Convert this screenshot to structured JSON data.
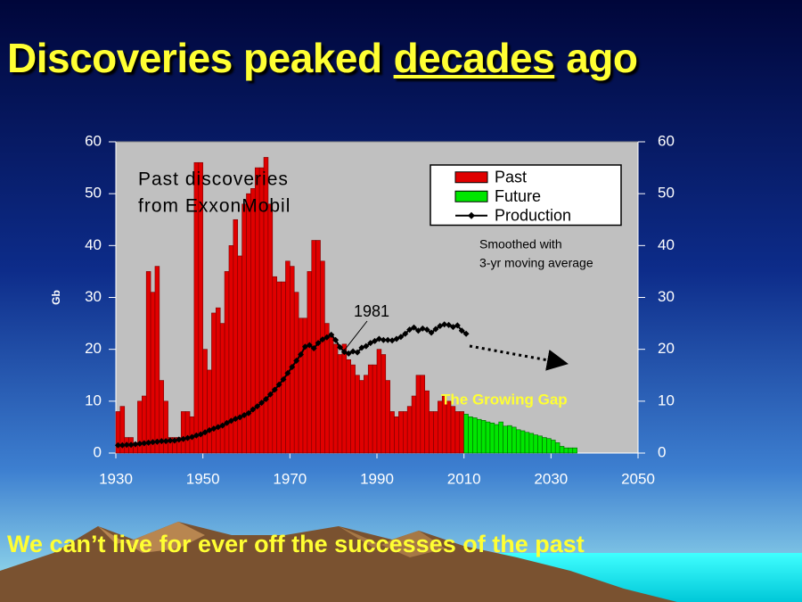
{
  "slide": {
    "title_parts": [
      "Discoveries peaked",
      "decades",
      "ago"
    ],
    "footer": "We can’t live for ever off the successes of the past"
  },
  "chart_data": {
    "type": "bar",
    "ylabel": "Gb",
    "annotations": {
      "source": [
        "Past discoveries",
        "from ExxonMobil"
      ],
      "smoothing": [
        "Smoothed with",
        "3-yr moving average"
      ],
      "peak_year": "1981",
      "gap": "The Growing Gap"
    },
    "x": [
      1930,
      1931,
      1932,
      1933,
      1934,
      1935,
      1936,
      1937,
      1938,
      1939,
      1940,
      1941,
      1942,
      1943,
      1944,
      1945,
      1946,
      1947,
      1948,
      1949,
      1950,
      1951,
      1952,
      1953,
      1954,
      1955,
      1956,
      1957,
      1958,
      1959,
      1960,
      1961,
      1962,
      1963,
      1964,
      1965,
      1966,
      1967,
      1968,
      1969,
      1970,
      1971,
      1972,
      1973,
      1974,
      1975,
      1976,
      1977,
      1978,
      1979,
      1980,
      1981,
      1982,
      1983,
      1984,
      1985,
      1986,
      1987,
      1988,
      1989,
      1990,
      1991,
      1992,
      1993,
      1994,
      1995,
      1996,
      1997,
      1998,
      1999,
      2000,
      2001,
      2002,
      2003,
      2004,
      2005,
      2006,
      2007,
      2008,
      2009,
      2010,
      2011,
      2012,
      2013,
      2014,
      2015,
      2016,
      2017,
      2018,
      2019,
      2020,
      2021,
      2022,
      2023,
      2024,
      2025,
      2026,
      2027,
      2028,
      2029,
      2030,
      2031,
      2032,
      2033,
      2034,
      2035
    ],
    "series": [
      {
        "name": "Past",
        "type": "bar",
        "color": "#e00000",
        "values": [
          8,
          9,
          3,
          3,
          2,
          10,
          11,
          35,
          31,
          36,
          14,
          10,
          3,
          3,
          3,
          8,
          8,
          7,
          56,
          56,
          20,
          16,
          27,
          28,
          25,
          35,
          40,
          45,
          38,
          48,
          50,
          51,
          55,
          55,
          57,
          48,
          34,
          33,
          33,
          37,
          36,
          31,
          26,
          26,
          35,
          41,
          41,
          37,
          25,
          23,
          21,
          19,
          21,
          18,
          17,
          15,
          14,
          15,
          17,
          17,
          20,
          19,
          14,
          8,
          7,
          8,
          8,
          9,
          11,
          15,
          15,
          12,
          8,
          8,
          10,
          11,
          10,
          9,
          8,
          8,
          null,
          null,
          null,
          null,
          null,
          null,
          null,
          null,
          null,
          null,
          null,
          null,
          null,
          null,
          null,
          null,
          null,
          null,
          null,
          null,
          null,
          null,
          null,
          null,
          null,
          null
        ]
      },
      {
        "name": "Future",
        "type": "bar",
        "color": "#00e600",
        "values": [
          null,
          null,
          null,
          null,
          null,
          null,
          null,
          null,
          null,
          null,
          null,
          null,
          null,
          null,
          null,
          null,
          null,
          null,
          null,
          null,
          null,
          null,
          null,
          null,
          null,
          null,
          null,
          null,
          null,
          null,
          null,
          null,
          null,
          null,
          null,
          null,
          null,
          null,
          null,
          null,
          null,
          null,
          null,
          null,
          null,
          null,
          null,
          null,
          null,
          null,
          null,
          null,
          null,
          null,
          null,
          null,
          null,
          null,
          null,
          null,
          null,
          null,
          null,
          null,
          null,
          null,
          null,
          null,
          null,
          null,
          null,
          null,
          null,
          null,
          null,
          null,
          null,
          null,
          null,
          null,
          7.5,
          7,
          6.8,
          6.5,
          6.3,
          6,
          5.8,
          5.5,
          6,
          5.2,
          5.3,
          5,
          4.5,
          4.3,
          4,
          3.8,
          3.5,
          3.3,
          3,
          2.8,
          2.5,
          2,
          1.3,
          1,
          1,
          1
        ]
      },
      {
        "name": "Production",
        "type": "line",
        "color": "#000000",
        "values": [
          1.5,
          1.5,
          1.6,
          1.6,
          1.7,
          1.8,
          1.9,
          2.0,
          2.1,
          2.2,
          2.3,
          2.3,
          2.4,
          2.4,
          2.6,
          2.7,
          2.9,
          3.1,
          3.4,
          3.6,
          4.0,
          4.4,
          4.7,
          5.0,
          5.3,
          5.8,
          6.2,
          6.6,
          6.9,
          7.3,
          7.7,
          8.4,
          9.0,
          9.7,
          10.4,
          11.3,
          12.2,
          13.2,
          14.2,
          15.4,
          16.6,
          17.8,
          19.0,
          20.5,
          20.8,
          20.2,
          21.2,
          21.9,
          22.3,
          22.8,
          21.8,
          20.4,
          19.5,
          19.2,
          19.6,
          19.4,
          20.3,
          20.6,
          21.2,
          21.6,
          22.0,
          21.8,
          21.8,
          21.7,
          22.0,
          22.4,
          23.0,
          23.8,
          24.2,
          23.6,
          24.0,
          23.8,
          23.2,
          23.9,
          24.5,
          24.8,
          24.7,
          24.3,
          24.6,
          23.6,
          23.0,
          null,
          null,
          null,
          null,
          null,
          null,
          null,
          null,
          null,
          null,
          null,
          null,
          null,
          null,
          null,
          null,
          null,
          null,
          null,
          null,
          null,
          null,
          null,
          null,
          null
        ]
      }
    ],
    "xlim": [
      1930,
      2050
    ],
    "xticks": [
      1930,
      1950,
      1970,
      1990,
      2010,
      2030,
      2050
    ],
    "ylim": [
      0,
      60
    ],
    "yticks": [
      0,
      10,
      20,
      30,
      40,
      50,
      60
    ],
    "y2lim": [
      0,
      60
    ],
    "y2ticks": [
      0,
      10,
      20,
      30,
      40,
      50,
      60
    ],
    "plot_background": "#c0c0c0",
    "legend": "upper right"
  }
}
